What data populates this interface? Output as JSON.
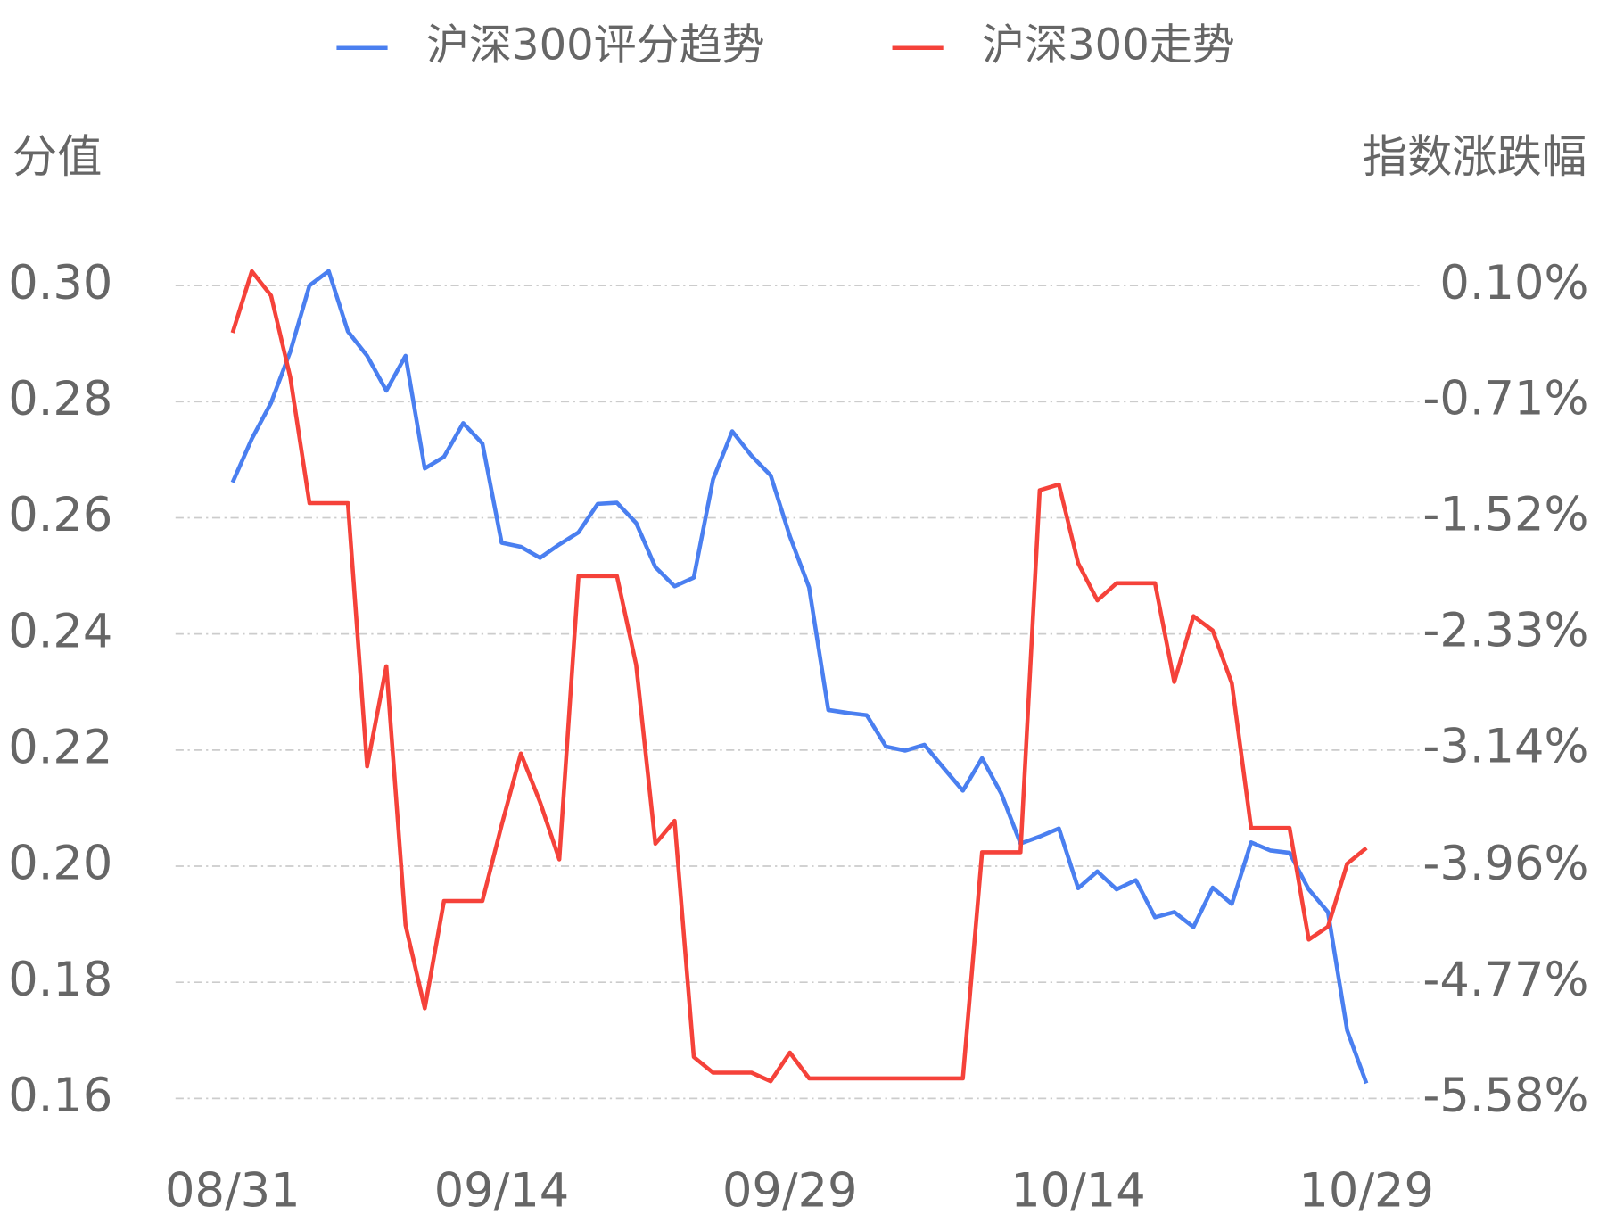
{
  "chart_data": {
    "type": "line",
    "y_label": "分值",
    "y2_label": "指数涨跌幅",
    "categories": [
      "08/31",
      null,
      null,
      null,
      null,
      null,
      null,
      null,
      null,
      null,
      null,
      null,
      null,
      null,
      "09/14",
      null,
      null,
      null,
      null,
      null,
      null,
      null,
      null,
      null,
      null,
      null,
      null,
      null,
      null,
      "09/29",
      null,
      null,
      null,
      null,
      null,
      null,
      null,
      null,
      null,
      null,
      null,
      null,
      null,
      null,
      "10/14",
      null,
      null,
      null,
      null,
      null,
      null,
      null,
      null,
      null,
      null,
      null,
      null,
      null,
      null,
      "10/29"
    ],
    "series": [
      {
        "name": "沪深300评分趋势",
        "color": "#4a7ff0",
        "axis": "y",
        "values": [
          0.2661,
          0.2736,
          0.2798,
          0.2886,
          0.3,
          0.3025,
          0.2921,
          0.2879,
          0.2819,
          0.2879,
          0.2685,
          0.2705,
          0.2763,
          0.2728,
          0.2557,
          0.255,
          0.2531,
          0.2554,
          0.2575,
          0.2624,
          0.2626,
          0.2591,
          0.2515,
          0.2482,
          0.2497,
          0.2666,
          0.2749,
          0.2707,
          0.2673,
          0.2568,
          0.248,
          0.2269,
          0.2264,
          0.226,
          0.2206,
          0.2199,
          0.2209,
          0.2169,
          0.213,
          0.2186,
          0.2125,
          0.2039,
          0.2051,
          0.2065,
          0.1962,
          0.1991,
          0.196,
          0.1976,
          0.1912,
          0.1921,
          0.1895,
          0.1963,
          0.1935,
          0.2041,
          0.2027,
          0.2023,
          0.196,
          0.1921,
          0.1717,
          0.1626
        ]
      },
      {
        "name": "沪深300走势",
        "color": "#f5423a",
        "axis": "y2",
        "values": [
          -0.23,
          0.2,
          0.03,
          -0.54,
          -1.42,
          -1.42,
          -1.42,
          -3.26,
          -2.56,
          -4.37,
          -4.95,
          -4.2,
          -4.2,
          -4.2,
          -3.67,
          -3.17,
          -3.51,
          -3.91,
          -1.93,
          -1.93,
          -1.93,
          -2.55,
          -3.8,
          -3.64,
          -5.29,
          -5.4,
          -5.4,
          -5.4,
          -5.46,
          -5.26,
          -5.44,
          -5.44,
          -5.44,
          -5.44,
          -5.44,
          -5.44,
          -5.44,
          -5.44,
          -5.44,
          -3.86,
          -3.86,
          -3.86,
          -1.33,
          -1.29,
          -1.84,
          -2.1,
          -1.98,
          -1.98,
          -1.98,
          -2.67,
          -2.21,
          -2.31,
          -2.68,
          -3.69,
          -3.69,
          -3.69,
          -4.47,
          -4.38,
          -3.94,
          -3.83
        ]
      }
    ],
    "ylim": [
      0.16,
      0.3
    ],
    "yticks": [
      {
        "value": 0.16,
        "label": "0.16"
      },
      {
        "value": 0.18,
        "label": "0.18"
      },
      {
        "value": 0.2,
        "label": "0.20"
      },
      {
        "value": 0.22,
        "label": "0.22"
      },
      {
        "value": 0.24,
        "label": "0.24"
      },
      {
        "value": 0.26,
        "label": "0.26"
      },
      {
        "value": 0.28,
        "label": "0.28"
      },
      {
        "value": 0.3,
        "label": "0.30"
      }
    ],
    "y2lim": [
      -5.58,
      0.1
    ],
    "y2ticks": [
      {
        "value": -5.58,
        "label": "-5.58%"
      },
      {
        "value": -4.77,
        "label": "-4.77%"
      },
      {
        "value": -3.96,
        "label": "-3.96%"
      },
      {
        "value": -3.14,
        "label": "-3.14%"
      },
      {
        "value": -2.33,
        "label": "-2.33%"
      },
      {
        "value": -1.52,
        "label": "-1.52%"
      },
      {
        "value": -0.71,
        "label": "-0.71%"
      },
      {
        "value": 0.1,
        "label": "0.10%"
      }
    ],
    "grid": true,
    "legend": "top"
  }
}
